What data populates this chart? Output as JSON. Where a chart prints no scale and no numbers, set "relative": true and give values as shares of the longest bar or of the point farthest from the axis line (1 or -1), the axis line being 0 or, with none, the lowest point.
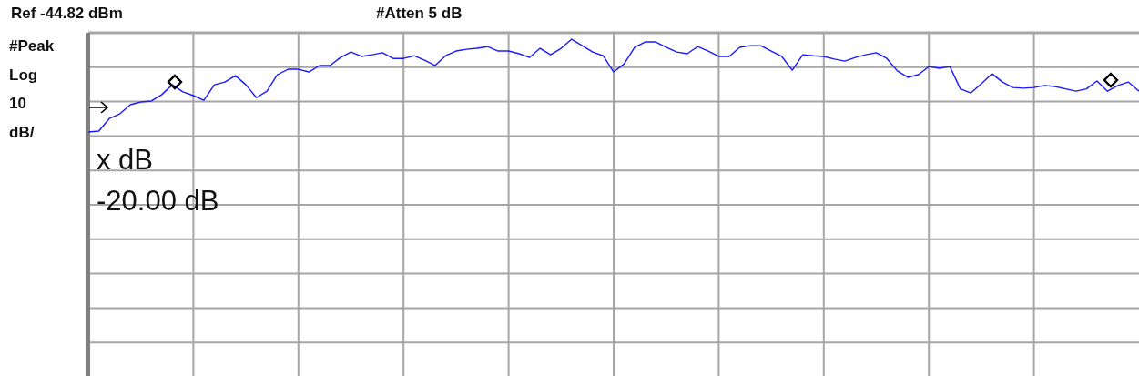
{
  "chart_data": {
    "type": "line",
    "relative": true,
    "grid": true,
    "tick_labels": false,
    "categories": [
      null,
      null,
      null,
      null,
      null,
      null,
      null,
      null,
      null,
      null,
      null,
      null,
      null,
      null,
      null,
      null,
      null,
      null,
      null,
      null,
      null,
      null,
      null,
      null,
      null,
      null,
      null,
      null,
      null,
      null,
      null,
      null,
      null,
      null,
      null,
      null,
      null,
      null,
      null,
      null,
      null,
      null,
      null,
      null,
      null,
      null,
      null,
      null,
      null,
      null,
      null,
      null,
      null,
      null,
      null,
      null,
      null,
      null,
      null,
      null,
      null,
      null,
      null,
      null,
      null,
      null,
      null,
      null,
      null,
      null,
      null,
      null,
      null,
      null,
      null,
      null,
      null,
      null,
      null,
      null,
      null,
      null,
      null,
      null,
      null,
      null,
      null,
      null,
      null,
      null,
      null,
      null,
      null,
      null,
      null,
      null,
      null,
      null,
      null,
      null,
      null
    ],
    "series": [
      {
        "color": "#1a1aff",
        "values": [
          0.725,
          0.728,
          0.765,
          0.779,
          0.806,
          0.814,
          0.817,
          0.836,
          0.865,
          0.844,
          0.833,
          0.819,
          0.865,
          0.873,
          0.892,
          0.865,
          0.827,
          0.846,
          0.895,
          0.911,
          0.911,
          0.903,
          0.922,
          0.922,
          0.946,
          0.962,
          0.949,
          0.954,
          0.96,
          0.943,
          0.943,
          0.951,
          0.938,
          0.922,
          0.951,
          0.965,
          0.97,
          0.973,
          0.978,
          0.965,
          0.965,
          0.957,
          0.946,
          0.973,
          0.954,
          0.973,
          1,
          0.981,
          0.962,
          0.951,
          0.903,
          0.927,
          0.976,
          0.992,
          0.992,
          0.976,
          0.962,
          0.957,
          0.978,
          0.965,
          0.949,
          0.949,
          0.976,
          0.981,
          0.981,
          0.965,
          0.949,
          0.908,
          0.954,
          0.951,
          0.949,
          0.941,
          0.935,
          0.946,
          0.954,
          0.96,
          0.943,
          0.906,
          0.887,
          0.895,
          0.919,
          0.914,
          0.919,
          0.853,
          0.841,
          0.868,
          0.898,
          0.873,
          0.857,
          0.855,
          0.857,
          0.863,
          0.86,
          0.853,
          0.846,
          0.853,
          0.876,
          0.846,
          0.863,
          0.873,
          0.846
        ]
      }
    ],
    "annotations": [
      "Ref -44.82 dBm",
      "#Atten 5 dB",
      "#Peak",
      "Log",
      "10",
      "dB/",
      "x dB",
      "-20.00 dB"
    ]
  }
}
